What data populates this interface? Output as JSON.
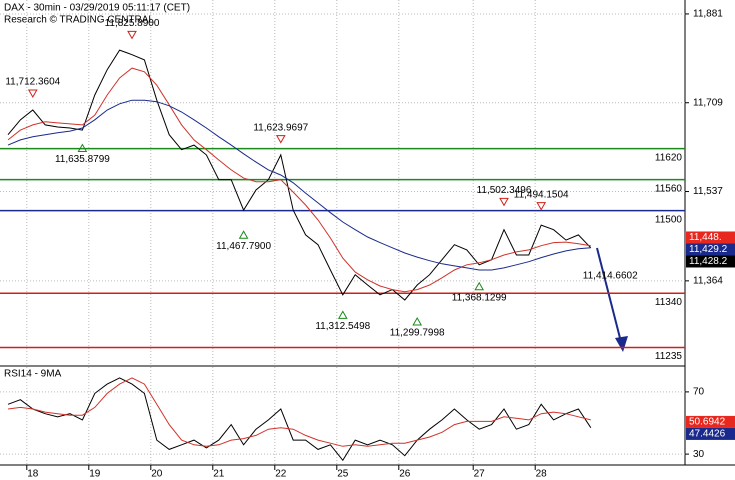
{
  "chart_data": [
    {
      "type": "line",
      "title": "DAX - 30min - 03/29/2019 05:11:17 (CET)",
      "subtitle": "Research © TRADING CENTRAL",
      "categories": [
        null,
        null,
        "18",
        null,
        null,
        null,
        null,
        "19",
        null,
        null,
        null,
        null,
        "20",
        null,
        null,
        null,
        null,
        "21",
        null,
        null,
        null,
        null,
        "22",
        null,
        null,
        null,
        null,
        "25",
        null,
        null,
        null,
        null,
        "26",
        null,
        null,
        null,
        null,
        null,
        "27",
        null,
        null,
        null,
        null,
        "28",
        null,
        null,
        null,
        null
      ],
      "series": [
        {
          "color": "#000000",
          "values": [
            11647,
            11676,
            11695,
            11666,
            11662,
            11660,
            11656,
            11724,
            11773,
            11811,
            11802,
            11792,
            11714,
            11647,
            11618,
            11627,
            11608,
            11560,
            11560,
            11501,
            11540,
            11560,
            11608,
            11501,
            11453,
            11434,
            11385,
            11337,
            11376,
            11356,
            11337,
            11347,
            11327,
            11356,
            11376,
            11405,
            11434,
            11424,
            11395,
            11405,
            11463,
            11414,
            11414,
            11472,
            11463,
            11443,
            11453,
            11428
          ]
        },
        {
          "color": "#d0332a",
          "values": [
            11637,
            11656,
            11666,
            11672,
            11670,
            11668,
            11666,
            11685,
            11724,
            11757,
            11776,
            11769,
            11743,
            11705,
            11666,
            11637,
            11618,
            11598,
            11579,
            11563,
            11556,
            11556,
            11560,
            11536,
            11511,
            11482,
            11447,
            11408,
            11381,
            11366,
            11354,
            11347,
            11343,
            11347,
            11356,
            11370,
            11385,
            11395,
            11399,
            11405,
            11414,
            11420,
            11424,
            11432,
            11438,
            11439,
            11436,
            11432
          ]
        },
        {
          "color": "#1a2a8c",
          "values": [
            11627,
            11637,
            11643,
            11647,
            11651,
            11654,
            11660,
            11676,
            11695,
            11707,
            11714,
            11714,
            11711,
            11703,
            11691,
            11676,
            11660,
            11643,
            11627,
            11610,
            11594,
            11579,
            11569,
            11554,
            11534,
            11515,
            11496,
            11478,
            11463,
            11449,
            11438,
            11428,
            11418,
            11410,
            11403,
            11397,
            11393,
            11389,
            11385,
            11385,
            11389,
            11395,
            11401,
            11409,
            11416,
            11422,
            11426,
            11428
          ]
        }
      ],
      "ylim": [
        11201,
        11908
      ],
      "yticks": [
        {
          "value": 11364,
          "label": "11,364"
        },
        {
          "value": 11537,
          "label": "11,537"
        },
        {
          "value": 11709,
          "label": "11,709"
        },
        {
          "value": 11881,
          "label": "11,881"
        }
      ],
      "grid": true,
      "levels": [
        {
          "value": 11620,
          "color": "#1a8a1a"
        },
        {
          "value": 11560,
          "color": "#1a8a1a"
        },
        {
          "value": 11500,
          "color": "#1a2a8c"
        },
        {
          "value": 11340,
          "color": "#d0201a"
        },
        {
          "value": 11235,
          "color": "#d0201a"
        }
      ],
      "annotations": [
        {
          "value": 11712.3604,
          "label": "11,712.3604",
          "x": 2,
          "direction": "high"
        },
        {
          "value": 11825.89,
          "label": "11,825.8900",
          "x": 10,
          "direction": "high"
        },
        {
          "value": 11635.8799,
          "label": "11,635.8799",
          "x": 6,
          "direction": "low"
        },
        {
          "value": 11623.9697,
          "label": "11,623.9697",
          "x": 22,
          "direction": "high"
        },
        {
          "value": 11467.79,
          "label": "11,467.7900",
          "x": 19,
          "direction": "low"
        },
        {
          "value": 11312.5498,
          "label": "11,312.5498",
          "x": 27,
          "direction": "low"
        },
        {
          "value": 11299.7998,
          "label": "11,299.7998",
          "x": 33,
          "direction": "low"
        },
        {
          "value": 11368.1299,
          "label": "11,368.1299",
          "x": 38,
          "direction": "low"
        },
        {
          "value": 11502.3496,
          "label": "11,502.3496",
          "x": 40,
          "direction": "high"
        },
        {
          "value": 11494.1504,
          "label": "11,494.1504",
          "x": 43,
          "direction": "high"
        },
        {
          "value": 11414.6602,
          "label": "11,414.6602",
          "x": 47
        }
      ],
      "tags": [
        {
          "value": 11448,
          "label": "11,448.",
          "color": "#e8281e"
        },
        {
          "value": 11429.2,
          "label": "11,429.2",
          "color": "#1a2a8c"
        },
        {
          "value": 11428.2,
          "label": "11,428.2",
          "color": "#000000"
        }
      ]
    },
    {
      "type": "line",
      "title": "RSI14 - 9MA",
      "series": [
        {
          "color": "#000000",
          "values": [
            62,
            65,
            59,
            56,
            54,
            56,
            52,
            69,
            75,
            79,
            75,
            69,
            39,
            33,
            36,
            39,
            34,
            39,
            49,
            36,
            46,
            52,
            59,
            39,
            39,
            33,
            36,
            26,
            39,
            36,
            39,
            36,
            29,
            39,
            46,
            52,
            59,
            52,
            46,
            49,
            59,
            46,
            49,
            62,
            52,
            56,
            59,
            47
          ]
        },
        {
          "color": "#d0332a",
          "values": [
            59,
            60,
            59,
            57,
            56,
            55,
            55,
            60,
            69,
            75,
            79,
            75,
            62,
            49,
            39,
            36,
            35,
            36,
            39,
            40,
            42,
            46,
            47,
            46,
            42,
            39,
            37,
            35,
            36,
            35,
            36,
            37,
            37,
            39,
            41,
            44,
            49,
            51,
            51,
            51,
            54,
            53,
            52,
            56,
            57,
            56,
            54,
            52
          ]
        }
      ],
      "ylim": [
        23,
        86
      ],
      "yticks": [
        30,
        70
      ],
      "grid": true,
      "tags": [
        {
          "value": 50.6942,
          "color": "#e8281e"
        },
        {
          "value": 47.4426,
          "color": "#1a2a8c"
        }
      ]
    }
  ]
}
